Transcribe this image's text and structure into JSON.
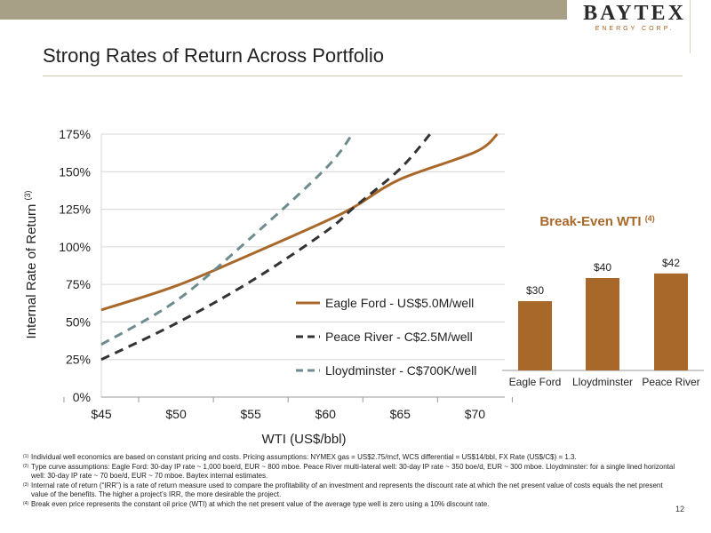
{
  "header": {
    "logo": "BAYTEX",
    "logo_sub": "ENERGY CORP.",
    "title": "Strong Rates of Return Across Portfolio",
    "page_number": "12"
  },
  "chart_data": [
    {
      "type": "line",
      "title": "",
      "xlabel": "WTI (US$/bbl)",
      "ylabel": "Internal Rate of Return",
      "ylabel_sup": "(3)",
      "xlim": [
        45,
        72
      ],
      "ylim": [
        0,
        175
      ],
      "x_ticks": [
        45,
        50,
        55,
        60,
        65,
        70
      ],
      "x_tick_labels": [
        "$45",
        "$50",
        "$55",
        "$60",
        "$65",
        "$70"
      ],
      "y_ticks": [
        0,
        25,
        50,
        75,
        100,
        125,
        150,
        175
      ],
      "y_tick_labels": [
        "0%",
        "25%",
        "50%",
        "75%",
        "100%",
        "125%",
        "150%",
        "175%"
      ],
      "legend_position": "lower-right",
      "series": [
        {
          "name": "Eagle Ford - US$5.0M/well",
          "color": "#a8682a",
          "style": "solid",
          "x": [
            45,
            50,
            55,
            60,
            62,
            65,
            70,
            71.5
          ],
          "y": [
            58,
            74,
            95,
            117,
            127,
            145,
            163,
            175
          ]
        },
        {
          "name": "Peace River - C$2.5M/well",
          "color": "#333333",
          "style": "dashed",
          "x": [
            45,
            50,
            55,
            60,
            62,
            65,
            67
          ],
          "y": [
            25,
            49,
            77,
            110,
            127,
            152,
            175
          ]
        },
        {
          "name": "Lloydminster - C$700K/well",
          "color": "#6e8b8f",
          "style": "dashed",
          "x": [
            45,
            50,
            55,
            60,
            61.8
          ],
          "y": [
            35,
            64,
            106,
            152,
            175
          ]
        }
      ]
    },
    {
      "type": "bar",
      "title": "Break-Even WTI",
      "title_sup": "(4)",
      "categories": [
        "Eagle Ford",
        "Lloydminster",
        "Peace River"
      ],
      "values": [
        30,
        40,
        42
      ],
      "value_labels": [
        "$30",
        "$40",
        "$42"
      ],
      "ylim": [
        0,
        50
      ],
      "color": "#a8682a"
    }
  ],
  "footnotes": [
    {
      "sup": "(1)",
      "text": "Individual well economics are based on constant pricing and costs. Pricing assumptions:  NYMEX gas = US$2.75/mcf, WCS differential = US$14/bbl, FX Rate (US$/C$) = 1.3."
    },
    {
      "sup": "(2)",
      "text": "Type curve assumptions:  Eagle Ford: 30-day IP rate ~ 1,000 boe/d, EUR ~ 800 mboe. Peace River multi-lateral well: 30-day IP rate ~ 350 boe/d, EUR ~ 300 mboe. Lloydminster:  for a single lined horizontal well: 30-day IP rate ~ 70 boe/d, EUR ~ 70 mboe. Baytex internal estimates."
    },
    {
      "sup": "(3)",
      "text": "Internal rate of return (“IRR”) is a rate of return measure used to compare the profitability of an investment and represents the discount rate at which the net present value of costs equals the net present value of the benefits. The higher a project’s IRR, the more desirable the project."
    },
    {
      "sup": "(4)",
      "text": "Break even price represents the constant oil price (WTI) at which the net present value of the average type well is zero using a 10% discount rate."
    }
  ]
}
